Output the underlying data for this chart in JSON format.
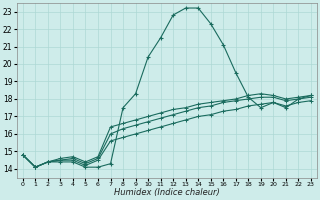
{
  "xlabel": "Humidex (Indice chaleur)",
  "bg_color": "#ceecea",
  "grid_color": "#aed8d5",
  "line_color": "#1a6b5e",
  "xlim": [
    -0.5,
    23.5
  ],
  "ylim": [
    13.5,
    23.5
  ],
  "yticks": [
    14,
    15,
    16,
    17,
    18,
    19,
    20,
    21,
    22,
    23
  ],
  "xticks": [
    0,
    1,
    2,
    3,
    4,
    5,
    6,
    7,
    8,
    9,
    10,
    11,
    12,
    13,
    14,
    15,
    16,
    17,
    18,
    19,
    20,
    21,
    22,
    23
  ],
  "series": [
    [
      14.8,
      14.1,
      14.4,
      14.4,
      14.4,
      14.1,
      14.1,
      14.3,
      17.5,
      18.3,
      20.4,
      21.5,
      22.8,
      23.2,
      23.2,
      22.3,
      21.1,
      19.5,
      18.1,
      17.5,
      17.8,
      17.5,
      18.0,
      18.2
    ],
    [
      14.8,
      14.1,
      14.4,
      14.5,
      14.6,
      14.3,
      14.6,
      16.0,
      16.3,
      16.5,
      16.7,
      16.9,
      17.1,
      17.3,
      17.5,
      17.6,
      17.8,
      17.9,
      18.0,
      18.1,
      18.1,
      17.9,
      18.0,
      18.1
    ],
    [
      14.8,
      14.1,
      14.4,
      14.5,
      14.5,
      14.2,
      14.5,
      15.6,
      15.8,
      16.0,
      16.2,
      16.4,
      16.6,
      16.8,
      17.0,
      17.1,
      17.3,
      17.4,
      17.6,
      17.7,
      17.8,
      17.6,
      17.8,
      17.9
    ],
    [
      14.8,
      14.1,
      14.4,
      14.6,
      14.7,
      14.4,
      14.7,
      16.4,
      16.6,
      16.8,
      17.0,
      17.2,
      17.4,
      17.5,
      17.7,
      17.8,
      17.9,
      18.0,
      18.2,
      18.3,
      18.2,
      18.0,
      18.1,
      18.2
    ]
  ]
}
